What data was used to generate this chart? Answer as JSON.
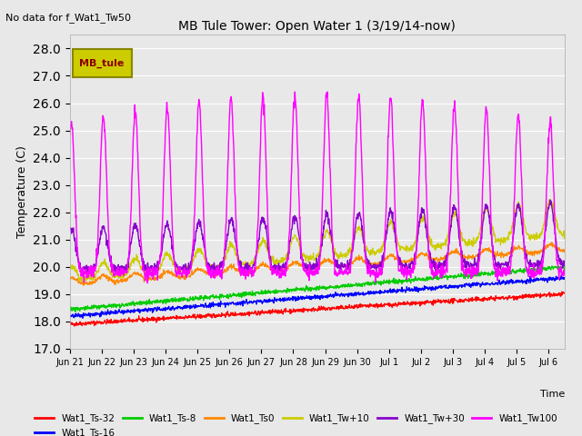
{
  "title": "MB Tule Tower: Open Water 1 (3/19/14-now)",
  "top_left_text": "No data for f_Wat1_Tw50",
  "ylabel": "Temperature (C)",
  "xlabel": "Time",
  "ylim": [
    17.0,
    28.5
  ],
  "yticks": [
    17.0,
    18.0,
    19.0,
    20.0,
    21.0,
    22.0,
    23.0,
    24.0,
    25.0,
    26.0,
    27.0,
    28.0
  ],
  "bg_color": "#e8e8e8",
  "series_colors": {
    "Wat1_Ts-32": "#ff0000",
    "Wat1_Ts-16": "#0000ff",
    "Wat1_Ts-8": "#00cc00",
    "Wat1_Ts0": "#ff8800",
    "Wat1_Tw+10": "#cccc00",
    "Wat1_Tw+30": "#8800cc",
    "Wat1_Tw100": "#ff00ff"
  },
  "xtick_labels": [
    "Jun 21",
    "Jun 22",
    "Jun 23",
    "Jun 24",
    "Jun 25",
    "Jun 26",
    "Jun 27",
    "Jun 28",
    "Jun 29",
    "Jun 30",
    "Jul 1",
    "Jul 2",
    "Jul 3",
    "Jul 4",
    "Jul 5",
    "Jul 6"
  ],
  "n_points": 1500,
  "n_days": 15.5,
  "legend_box_text": "MB_tule",
  "legend_box_color": "#cccc00",
  "legend_box_edge": "#888800",
  "legend_box_text_color": "#8b0000"
}
